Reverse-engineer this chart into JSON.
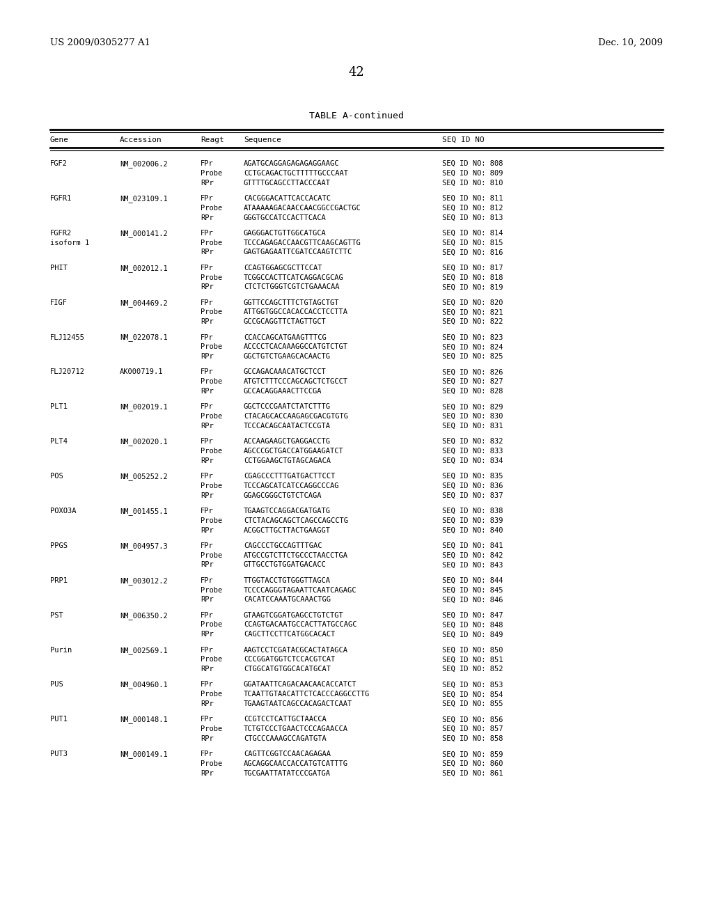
{
  "header_left": "US 2009/0305277 A1",
  "header_right": "Dec. 10, 2009",
  "page_number": "42",
  "table_title": "TABLE A-continued",
  "col_headers": [
    "Gene",
    "Accession",
    "Reagt",
    "Sequence",
    "SEQ ID NO"
  ],
  "background_color": "#ffffff",
  "text_color": "#000000",
  "rows": [
    [
      "FGF2",
      "NM_002006.2",
      "FPr",
      "AGATGCAGGAGAGAGAGGAAGC",
      "SEQ ID NO: 808"
    ],
    [
      "",
      "",
      "Probe",
      "CCTGCAGACTGCTTTTTGCCCAAT",
      "SEQ ID NO: 809"
    ],
    [
      "",
      "",
      "RPr",
      "GTTTTGCAGCCTTACCCAAT",
      "SEQ ID NO: 810"
    ],
    [
      "FGFR1",
      "NM_023109.1",
      "FPr",
      "CACGGGACATTCACCACATC",
      "SEQ ID NO: 811"
    ],
    [
      "",
      "",
      "Probe",
      "ATAAAAAGACAACCAACGGCCGACTGC",
      "SEQ ID NO: 812"
    ],
    [
      "",
      "",
      "RPr",
      "GGGTGCCATCCACTTCACA",
      "SEQ ID NO: 813"
    ],
    [
      "FGFR2",
      "NM_000141.2",
      "FPr",
      "GAGGGACTGTTGGCATGCA",
      "SEQ ID NO: 814"
    ],
    [
      "isoform 1",
      "",
      "Probe",
      "TCCCAGAGACCAACGTTCAAGCAGTTG",
      "SEQ ID NO: 815"
    ],
    [
      "",
      "",
      "RPr",
      "GAGTGAGAATTCGATCCAAGTCTTC",
      "SEQ ID NO: 816"
    ],
    [
      "PHIT",
      "NM_002012.1",
      "FPr",
      "CCAGTGGAGCGCTTCCAT",
      "SEQ ID NO: 817"
    ],
    [
      "",
      "",
      "Probe",
      "TCGGCCACTTCATCAGGACGCAG",
      "SEQ ID NO: 818"
    ],
    [
      "",
      "",
      "RPr",
      "CTCTCTGGGTCGTCTGAAACAA",
      "SEQ ID NO: 819"
    ],
    [
      "FIGF",
      "NM_004469.2",
      "FPr",
      "GGTTCCAGCTTTCTGTAGCTGT",
      "SEQ ID NO: 820"
    ],
    [
      "",
      "",
      "Probe",
      "ATTGGTGGCCACACCACCTCCTTA",
      "SEQ ID NO: 821"
    ],
    [
      "",
      "",
      "RPr",
      "GCCGCAGGTTCTAGTTGCT",
      "SEQ ID NO: 822"
    ],
    [
      "FLJ12455",
      "NM_022078.1",
      "FPr",
      "CCACCAGCATGAAGTTTCG",
      "SEQ ID NO: 823"
    ],
    [
      "",
      "",
      "Probe",
      "ACCCCTCACAAAGGCCATGTCTGT",
      "SEQ ID NO: 824"
    ],
    [
      "",
      "",
      "RPr",
      "GGCTGTCTGAAGCACAACTG",
      "SEQ ID NO: 825"
    ],
    [
      "FLJ20712",
      "AK000719.1",
      "FPr",
      "GCCAGACAAACATGCTCCT",
      "SEQ ID NO: 826"
    ],
    [
      "",
      "",
      "Probe",
      "ATGTCTTTCCCAGCAGCTCTGCCT",
      "SEQ ID NO: 827"
    ],
    [
      "",
      "",
      "RPr",
      "GCCACAGGAAACTTCCGA",
      "SEQ ID NO: 828"
    ],
    [
      "PLT1",
      "NM_002019.1",
      "FPr",
      "GGCTCCCGAATCTATCTTTG",
      "SEQ ID NO: 829"
    ],
    [
      "",
      "",
      "Probe",
      "CTACAGCACCAAGAGCGACGTGTG",
      "SEQ ID NO: 830"
    ],
    [
      "",
      "",
      "RPr",
      "TCCCACAGCAATACTCCGTA",
      "SEQ ID NO: 831"
    ],
    [
      "PLT4",
      "NM_002020.1",
      "FPr",
      "ACCAAGAAGCTGAGGACCTG",
      "SEQ ID NO: 832"
    ],
    [
      "",
      "",
      "Probe",
      "AGCCCGCTGACCATGGAAGATCT",
      "SEQ ID NO: 833"
    ],
    [
      "",
      "",
      "RPr",
      "CCTGGAAGCTGTAGCAGACA",
      "SEQ ID NO: 834"
    ],
    [
      "POS",
      "NM_005252.2",
      "FPr",
      "CGAGCCCTTTGATGACTTCCT",
      "SEQ ID NO: 835"
    ],
    [
      "",
      "",
      "Probe",
      "TCCCAGCATCATCCAGGCCCAG",
      "SEQ ID NO: 836"
    ],
    [
      "",
      "",
      "RPr",
      "GGAGCGGGCTGTCTCAGA",
      "SEQ ID NO: 837"
    ],
    [
      "POXO3A",
      "NM_001455.1",
      "FPr",
      "TGAAGTCCAGGACGATGATG",
      "SEQ ID NO: 838"
    ],
    [
      "",
      "",
      "Probe",
      "CTCTACAGCAGCTCAGCCAGCCTG",
      "SEQ ID NO: 839"
    ],
    [
      "",
      "",
      "RPr",
      "ACGGCTTGCTTACTGAAGGT",
      "SEQ ID NO: 840"
    ],
    [
      "PPGS",
      "NM_004957.3",
      "FPr",
      "CAGCCCTGCCAGTTTGAC",
      "SEQ ID NO: 841"
    ],
    [
      "",
      "",
      "Probe",
      "ATGCCGTCTTCTGCCCTAACCTGA",
      "SEQ ID NO: 842"
    ],
    [
      "",
      "",
      "RPr",
      "GTTGCCTGTGGATGACACC",
      "SEQ ID NO: 843"
    ],
    [
      "PRP1",
      "NM_003012.2",
      "FPr",
      "TTGGTACCTGTGGGTTAGCA",
      "SEQ ID NO: 844"
    ],
    [
      "",
      "",
      "Probe",
      "TCCCCAGGGTAGAATTCAATCAGAGC",
      "SEQ ID NO: 845"
    ],
    [
      "",
      "",
      "RPr",
      "CACATCCAAATGCAAACTGG",
      "SEQ ID NO: 846"
    ],
    [
      "PST",
      "NM_006350.2",
      "FPr",
      "GTAAGTCGGATGAGCCTGTCTGT",
      "SEQ ID NO: 847"
    ],
    [
      "",
      "",
      "Probe",
      "CCAGTGACAATGCCACTTATGCCAGC",
      "SEQ ID NO: 848"
    ],
    [
      "",
      "",
      "RPr",
      "CAGCTTCCTTCATGGCACACT",
      "SEQ ID NO: 849"
    ],
    [
      "Purin",
      "NM_002569.1",
      "FPr",
      "AAGTCCTCGATACGCACTATAGCA",
      "SEQ ID NO: 850"
    ],
    [
      "",
      "",
      "Probe",
      "CCCGGATGGTCTCCACGTCAT",
      "SEQ ID NO: 851"
    ],
    [
      "",
      "",
      "RPr",
      "CTGGCATGTGGCACATGCAT",
      "SEQ ID NO: 852"
    ],
    [
      "PUS",
      "NM_004960.1",
      "FPr",
      "GGATAATTCAGACAACAACACCATCT",
      "SEQ ID NO: 853"
    ],
    [
      "",
      "",
      "Probe",
      "TCAATTGTAACATTCTCACCCAGGCCTTG",
      "SEQ ID NO: 854"
    ],
    [
      "",
      "",
      "RPr",
      "TGAAGTAATCAGCCACAGACTCAAT",
      "SEQ ID NO: 855"
    ],
    [
      "PUT1",
      "NM_000148.1",
      "FPr",
      "CCGTCCTCATTGCTAACCA",
      "SEQ ID NO: 856"
    ],
    [
      "",
      "",
      "Probe",
      "TCTGTCCCTGAACTCCCAGAACCA",
      "SEQ ID NO: 857"
    ],
    [
      "",
      "",
      "RPr",
      "CTGCCCAAAGCCAGATGTA",
      "SEQ ID NO: 858"
    ],
    [
      "PUT3",
      "NM_000149.1",
      "FPr",
      "CAGTTCGGTCCAACAGAGAA",
      "SEQ ID NO: 859"
    ],
    [
      "",
      "",
      "Probe",
      "AGCAGGCAACCACCATGTCATTTG",
      "SEQ ID NO: 860"
    ],
    [
      "",
      "",
      "RPr",
      "TGCGAATTATATCCCGATGA",
      "SEQ ID NO: 861"
    ]
  ]
}
